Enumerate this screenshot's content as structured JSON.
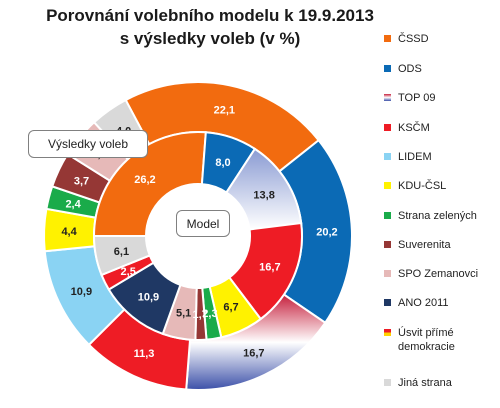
{
  "chart_data": {
    "type": "donut",
    "title_lines": [
      "Porovnání volebního modelu k 19.9.2013",
      "s výsledky voleb (v %)"
    ],
    "outer_ring_label": "Výsledky voleb",
    "inner_ring_label": "Model",
    "categories": [
      "ČSSD",
      "ODS",
      "TOP 09",
      "KSČM",
      "LIDEM",
      "KDU-ČSL",
      "Strana zelených",
      "Suverenita",
      "SPO Zemanovci",
      "ANO 2011",
      "Úsvit přímé demokracie",
      "Jiná strana"
    ],
    "series": [
      {
        "ring": "outer",
        "slices": [
          {
            "party": "ČSSD",
            "value": 22.1,
            "label": "22,1"
          },
          {
            "party": "ODS",
            "value": 20.2,
            "label": "20,2"
          },
          {
            "party": "TOP 09",
            "value": 16.7,
            "label": "16,7"
          },
          {
            "party": "KSČM",
            "value": 11.3,
            "label": "11,3"
          },
          {
            "party": "LIDEM",
            "value": 10.9,
            "label": "10,9"
          },
          {
            "party": "KDU-ČSL",
            "value": 4.4,
            "label": "4,4"
          },
          {
            "party": "Strana zelených",
            "value": 2.4,
            "label": "2,4"
          },
          {
            "party": "Suverenita",
            "value": 3.7,
            "label": "3,7"
          },
          {
            "party": "SPO Zemanovci",
            "value": 4.3,
            "label": "4,3"
          },
          {
            "party": "Jiná strana",
            "value": 4.0,
            "label": "4,0"
          }
        ]
      },
      {
        "ring": "inner",
        "slices": [
          {
            "party": "ČSSD",
            "value": 26.2,
            "label": "26,2"
          },
          {
            "party": "ODS",
            "value": 8.0,
            "label": "8,0"
          },
          {
            "party": "TOP 09",
            "value": 13.8,
            "label": "13,8"
          },
          {
            "party": "KSČM",
            "value": 16.7,
            "label": "16,7"
          },
          {
            "party": "KDU-ČSL",
            "value": 6.7,
            "label": "6,7"
          },
          {
            "party": "Strana zelených",
            "value": 2.3,
            "label": "2,3"
          },
          {
            "party": "Suverenita",
            "value": 1.7,
            "label": "1,7"
          },
          {
            "party": "SPO Zemanovci",
            "value": 5.1,
            "label": "5,1"
          },
          {
            "party": "ANO 2011",
            "value": 10.9,
            "label": "10,9"
          },
          {
            "party": "Úsvit přímé demokracie",
            "value": 2.5,
            "label": "2,5"
          },
          {
            "party": "Jiná strana",
            "value": 6.1,
            "label": "6,1"
          }
        ]
      }
    ],
    "colors": {
      "ČSSD": "#F26B0F",
      "ODS": "#0B6AB5",
      "TOP 09": "#C6203D",
      "KSČM": "#EE1C25",
      "LIDEM": "#8AD3F3",
      "KDU-ČSL": "#FFF200",
      "Strana zelených": "#1AAB4A",
      "Suverenita": "#953735",
      "SPO Zemanovci": "#E6B9B8",
      "ANO 2011": "#1F3864",
      "Úsvit přímé demokracie": "#EE1C25",
      "Jiná strana": "#D9D9D9"
    },
    "legend_position": "right"
  }
}
